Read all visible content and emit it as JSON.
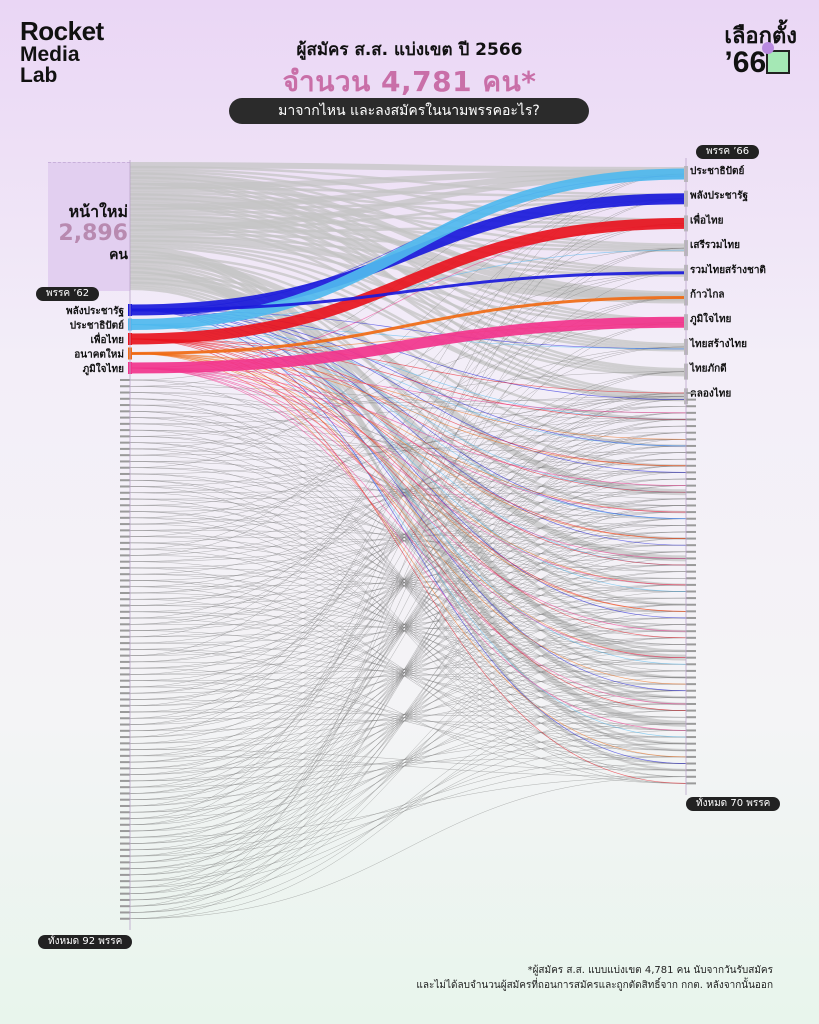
{
  "brand": {
    "line1": "Rocket",
    "line2": "Media",
    "line3": "Lab"
  },
  "badge": {
    "line1": "เลือกตั้ง",
    "line2": "’66"
  },
  "title": "ผู้สมัคร ส.ส. แบ่งเขต ปี 2566",
  "subtitle": "จำนวน 4,781 คน*",
  "question": "มาจากไหน และลงสมัครในนามพรรคอะไร?",
  "left_tag": "พรรค ’62",
  "right_tag": "พรรค ’66",
  "left_total": "ทั้งหมด 92 พรรค",
  "right_total": "ทั้งหมด 70 พรรค",
  "new_candidates": {
    "label": "หน้าใหม่",
    "value": "2,896",
    "unit": "คน"
  },
  "footnote": {
    "line1": "*ผู้สมัคร ส.ส. แบบแบ่งเขต 4,781 คน นับจากวันรับสมัคร",
    "line2": "และไม่ได้ลบจำนวนผู้สมัครที่ถอนการสมัครและถูกตัดสิทธิ์จาก กกต. หลังจากนั้นออก"
  },
  "chart_data": {
    "type": "sankey",
    "title": "ผู้สมัคร ส.ส. แบ่งเขต ปี 2566",
    "left_label": "พรรค ’62",
    "right_label": "พรรค ’66",
    "total": 4781,
    "new_candidates": 2896,
    "left_nodes": [
      {
        "name": "หน้าใหม่",
        "value": 2896,
        "color": "#d0d0d0"
      },
      {
        "name": "พลังประชารัฐ",
        "color": "#1a1adb"
      },
      {
        "name": "ประชาธิปัตย์",
        "color": "#4fb8ee"
      },
      {
        "name": "เพื่อไทย",
        "color": "#e8141e"
      },
      {
        "name": "อนาคตใหม่",
        "color": "#f06a14"
      },
      {
        "name": "ภูมิใจไทย",
        "color": "#f2348c"
      }
    ],
    "right_nodes": [
      "ประชาธิปัตย์",
      "พลังประชารัฐ",
      "เพื่อไทย",
      "เสรีรวมไทย",
      "รวมไทยสร้างชาติ",
      "ก้าวไกล",
      "ภูมิใจไทย",
      "ไทยสร้างไทย",
      "ไทยภักดี",
      "คลองไทย"
    ],
    "highlight_flows": [
      {
        "from": "พลังประชารัฐ",
        "to": "พลังประชารัฐ",
        "color": "#1a1adb"
      },
      {
        "from": "ประชาธิปัตย์",
        "to": "ประชาธิปัตย์",
        "color": "#4fb8ee"
      },
      {
        "from": "เพื่อไทย",
        "to": "เพื่อไทย",
        "color": "#e8141e"
      },
      {
        "from": "อนาคตใหม่",
        "to": "ก้าวไกล",
        "color": "#f06a14"
      },
      {
        "from": "ภูมิใจไทย",
        "to": "ภูมิใจไทย",
        "color": "#f2348c"
      },
      {
        "from": "พลังประชารัฐ",
        "to": "รวมไทยสร้างชาติ",
        "color": "#1a1adb"
      }
    ],
    "left_party_count": 92,
    "right_party_count": 70
  }
}
